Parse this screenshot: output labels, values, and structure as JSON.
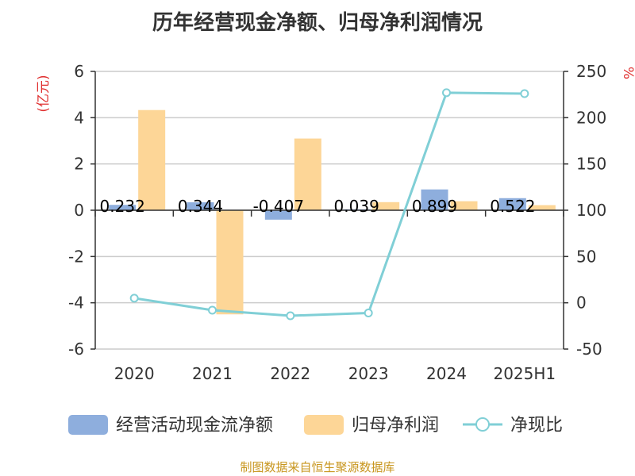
{
  "chart_data": {
    "type": "bar",
    "title": "历年经营现金净额、归母净利润情况",
    "categories": [
      "2020",
      "2021",
      "2022",
      "2023",
      "2024",
      "2025H1"
    ],
    "series": [
      {
        "name": "经营活动现金流净额",
        "type": "bar",
        "axis": "left",
        "color": "#8eaedd",
        "values": [
          0.232,
          0.344,
          -0.407,
          0.039,
          0.899,
          0.522
        ],
        "labels": [
          "0.232",
          "0.344",
          "-0.407",
          "0.039",
          "0.899",
          "0.522"
        ]
      },
      {
        "name": "归母净利润",
        "type": "bar",
        "axis": "left",
        "color": "#fdd697",
        "values": [
          4.33,
          -4.5,
          3.1,
          0.35,
          0.39,
          0.22
        ]
      },
      {
        "name": "净现比",
        "type": "line",
        "axis": "right",
        "color": "#80cfd6",
        "values": [
          5,
          -8,
          -14,
          -11,
          227,
          226
        ]
      }
    ],
    "left_axis": {
      "label": "(亿元)",
      "ylim": [
        -6,
        6
      ],
      "ticks": [
        "6",
        "4",
        "2",
        "0",
        "-2",
        "-4",
        "-6"
      ]
    },
    "right_axis": {
      "label": "%",
      "ylim": [
        -50,
        250
      ],
      "ticks": [
        "250",
        "200",
        "150",
        "100",
        "50",
        "0",
        "-50"
      ]
    },
    "grid": true,
    "legend_position": "bottom"
  },
  "source_note": "制图数据来自恒生聚源数据库"
}
